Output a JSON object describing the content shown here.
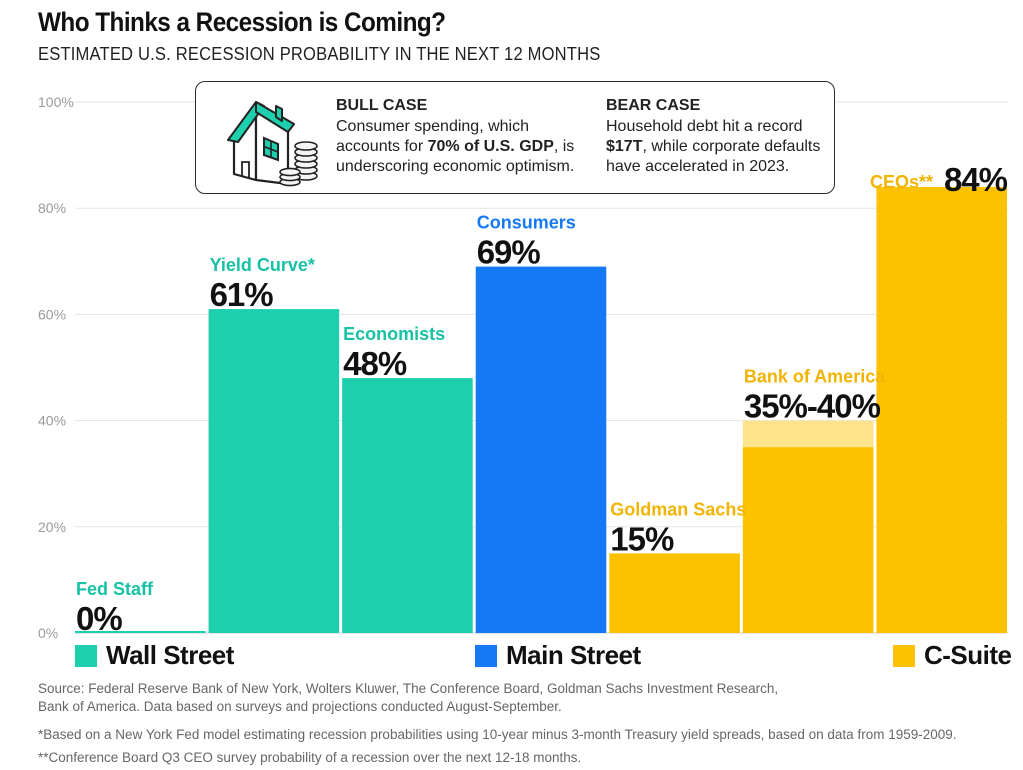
{
  "header": {
    "title": "Who Thinks a Recession is Coming?",
    "subtitle": "ESTIMATED U.S. RECESSION PROBABILITY IN THE NEXT 12 MONTHS"
  },
  "info_box": {
    "icon": "house-with-coins-icon",
    "bull": {
      "title": "BULL CASE",
      "text_before": "Consumer spending, which accounts for ",
      "highlight": "70% of U.S. GDP",
      "text_after": ", is underscoring economic optimism."
    },
    "bear": {
      "title": "BEAR CASE",
      "text_before": "Household debt hit a record ",
      "highlight": "$17T",
      "text_after": ", while corporate defaults have accelerated in 2023."
    }
  },
  "chart_data": {
    "type": "bar",
    "title": "Who Thinks a Recession is Coming?",
    "subtitle": "ESTIMATED U.S. RECESSION PROBABILITY IN THE NEXT 12 MONTHS",
    "ylim": [
      0,
      100
    ],
    "yticks": [
      0,
      20,
      40,
      60,
      80,
      100
    ],
    "ytick_labels": [
      "0%",
      "20%",
      "40%",
      "60%",
      "80%",
      "100%"
    ],
    "grid": true,
    "categories": [
      "Fed Staff",
      "Yield Curve*",
      "Economists",
      "Consumers",
      "Goldman Sachs",
      "Bank of America",
      "CEOs**"
    ],
    "bars": [
      {
        "name": "Fed Staff",
        "value": 0,
        "label": "0%",
        "group": "Wall Street"
      },
      {
        "name": "Yield Curve*",
        "value": 61,
        "label": "61%",
        "group": "Wall Street"
      },
      {
        "name": "Economists",
        "value": 48,
        "label": "48%",
        "group": "Wall Street"
      },
      {
        "name": "Consumers",
        "value": 69,
        "label": "69%",
        "group": "Main Street"
      },
      {
        "name": "Goldman Sachs",
        "value": 15,
        "label": "15%",
        "group": "C-Suite"
      },
      {
        "name": "Bank of America",
        "value": 35,
        "value_high": 40,
        "label": "35%-40%",
        "group": "C-Suite"
      },
      {
        "name": "CEOs**",
        "value": 84,
        "label": "84%",
        "group": "C-Suite"
      }
    ],
    "groups": [
      {
        "name": "Wall Street",
        "color": "#1ecfae",
        "label_color": "#17c2a4"
      },
      {
        "name": "Main Street",
        "color": "#1479f2",
        "label_color": "#1479f2"
      },
      {
        "name": "C-Suite",
        "color": "#fcc200",
        "label_color": "#f2b400"
      }
    ],
    "range_color": "#fde38a"
  },
  "legend": [
    {
      "label": "Wall Street",
      "color": "#1ecfae"
    },
    {
      "label": "Main Street",
      "color": "#1479f2"
    },
    {
      "label": "C-Suite",
      "color": "#fcc200"
    }
  ],
  "footnotes": {
    "source": "Source: Federal Reserve Bank of New York, Wolters Kluwer, The Conference Board, Goldman Sachs Investment Research, Bank of America. Data based on surveys and projections conducted August-September.",
    "note1": "*Based on a New York Fed model estimating recession probabilities using 10-year minus 3-month Treasury yield spreads, based on data from 1959-2009.",
    "note2": "**Conference Board Q3 CEO survey probability of a recession over the next 12-18 months."
  }
}
